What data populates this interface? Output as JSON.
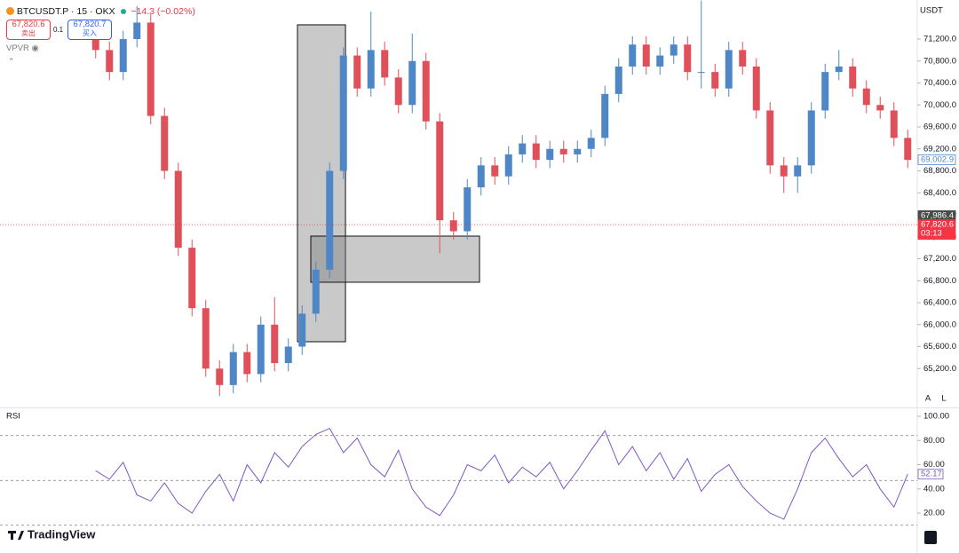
{
  "header": {
    "symbol": "BTCUSDT.P · 15 · OKX",
    "change": "−14.3 (−0.02%)",
    "sell_price": "67,820.6",
    "sell_label": "卖出",
    "spread": "0.1",
    "buy_price": "67,820.7",
    "buy_label": "买入",
    "indicator": "VPVR"
  },
  "currency": "USDT",
  "brand": "TradingView",
  "scale_buttons": [
    "A",
    "L"
  ],
  "chart_data": [
    {
      "type": "candlestick",
      "up_color": "#4f86c6",
      "down_color": "#e0505a",
      "ylim": [
        64509,
        71911
      ],
      "yticks": [
        {
          "value": 65200,
          "label": "65,200.0"
        },
        {
          "value": 65600,
          "label": "65,600.0"
        },
        {
          "value": 66000,
          "label": "66,000.0"
        },
        {
          "value": 66400,
          "label": "66,400.0"
        },
        {
          "value": 66800,
          "label": "66,800.0"
        },
        {
          "value": 67200,
          "label": "67,200.0"
        },
        {
          "value": 67600,
          "label": "67,600.0"
        },
        {
          "value": 68000,
          "label": "68,000.0"
        },
        {
          "value": 68400,
          "label": "68,400.0"
        },
        {
          "value": 68800,
          "label": "68,800.0"
        },
        {
          "value": 69200,
          "label": "69,200.0"
        },
        {
          "value": 69600,
          "label": "69,600.0"
        },
        {
          "value": 70000,
          "label": "70,000.0"
        },
        {
          "value": 70400,
          "label": "70,400.0"
        },
        {
          "value": 70800,
          "label": "70,800.0"
        },
        {
          "value": 71200,
          "label": "71,200.0"
        }
      ],
      "open": [
        71300,
        71000,
        70600,
        71200,
        71500,
        69800,
        68800,
        67400,
        66300,
        65200,
        64900,
        65500,
        65100,
        66000,
        65300,
        65600,
        66200,
        67000,
        68800,
        70900,
        70300,
        71000,
        70500,
        70000,
        70800,
        69700,
        67900,
        67700,
        68500,
        68900,
        68700,
        69100,
        69300,
        69000,
        69200,
        69100,
        69200,
        69400,
        70200,
        70700,
        71100,
        70700,
        70900,
        71100,
        70600,
        70600,
        70300,
        71000,
        70700,
        69900,
        68900,
        68700,
        68900,
        69900,
        70600,
        70700,
        70300,
        70000,
        69900,
        69400
      ],
      "high": [
        71450,
        71150,
        71350,
        71800,
        71650,
        69950,
        68950,
        67550,
        66450,
        65350,
        65650,
        65650,
        66150,
        66500,
        65750,
        66350,
        67150,
        68950,
        71050,
        71050,
        71700,
        71150,
        70650,
        71300,
        70950,
        69850,
        68050,
        68650,
        69050,
        69050,
        69250,
        69450,
        69450,
        69350,
        69350,
        69350,
        69550,
        70350,
        70850,
        71250,
        71250,
        71050,
        71250,
        71250,
        71900,
        70750,
        71150,
        71150,
        70850,
        70050,
        69050,
        69050,
        70050,
        70750,
        71000,
        70850,
        70450,
        70150,
        70050,
        69550
      ],
      "low": [
        70850,
        70450,
        70450,
        71050,
        69650,
        68650,
        67250,
        66150,
        65050,
        64700,
        64750,
        64950,
        64950,
        65150,
        65150,
        65450,
        66050,
        66850,
        68650,
        70150,
        70150,
        70350,
        69850,
        69850,
        69550,
        67300,
        67550,
        67550,
        68350,
        68550,
        68550,
        68950,
        68850,
        68850,
        68950,
        68950,
        69050,
        69250,
        70050,
        70550,
        70550,
        70550,
        70750,
        70450,
        70300,
        70150,
        70150,
        70550,
        69750,
        68750,
        68400,
        68400,
        68750,
        69750,
        70450,
        70150,
        69850,
        69750,
        69250,
        68850
      ],
      "close": [
        71000,
        70600,
        71200,
        71500,
        69800,
        68800,
        67400,
        66300,
        65200,
        64900,
        65500,
        65100,
        66000,
        65300,
        65600,
        66200,
        67000,
        68800,
        70900,
        70300,
        71000,
        70500,
        70000,
        70800,
        69700,
        67900,
        67700,
        68500,
        68900,
        68700,
        69100,
        69300,
        69000,
        69200,
        69100,
        69200,
        69400,
        70200,
        70700,
        71100,
        70700,
        70900,
        71100,
        70600,
        70600,
        70300,
        71000,
        70700,
        69900,
        68900,
        68700,
        68900,
        69900,
        70600,
        70700,
        70300,
        70000,
        69900,
        69400,
        69000
      ],
      "price_labels": [
        {
          "value": 69002.9,
          "label": "69,002.9",
          "color": "#4f86c6",
          "style": "outline"
        },
        {
          "value": 67986.4,
          "label": "67,986.4",
          "color": "#4a4a4a",
          "style": "solid"
        },
        {
          "value": 67820.6,
          "label": "67,820.6",
          "color": "#f23645",
          "style": "solid",
          "countdown": "03:13"
        }
      ],
      "boxes": [
        {
          "x": [
            14.66,
            18.15
          ],
          "y": [
            65689,
            71459
          ]
        },
        {
          "x": [
            15.63,
            27.89
          ],
          "y": [
            66772,
            67612
          ]
        }
      ]
    },
    {
      "type": "line",
      "title": "RSI",
      "color": "#7e57c2",
      "ylim": [
        7.6,
        102.9
      ],
      "yticks": [
        {
          "value": 20,
          "label": "20.00"
        },
        {
          "value": 40,
          "label": "40.00"
        },
        {
          "value": 60,
          "label": "60.00"
        },
        {
          "value": 80,
          "label": "80.00"
        },
        {
          "value": 100,
          "label": "100.00"
        }
      ],
      "levels": [
        84,
        47,
        10
      ],
      "values": [
        55,
        48,
        62,
        35,
        30,
        45,
        28,
        20,
        38,
        52,
        30,
        60,
        45,
        70,
        58,
        75,
        85,
        90,
        70,
        82,
        60,
        50,
        72,
        40,
        25,
        18,
        35,
        60,
        55,
        68,
        45,
        58,
        50,
        62,
        40,
        55,
        72,
        88,
        60,
        75,
        55,
        70,
        48,
        65,
        38,
        52,
        60,
        42,
        30,
        20,
        15,
        40,
        70,
        82,
        65,
        50,
        60,
        40,
        25,
        52.17
      ],
      "last_value_label": {
        "value": 52.17,
        "label": "52.17"
      }
    }
  ]
}
